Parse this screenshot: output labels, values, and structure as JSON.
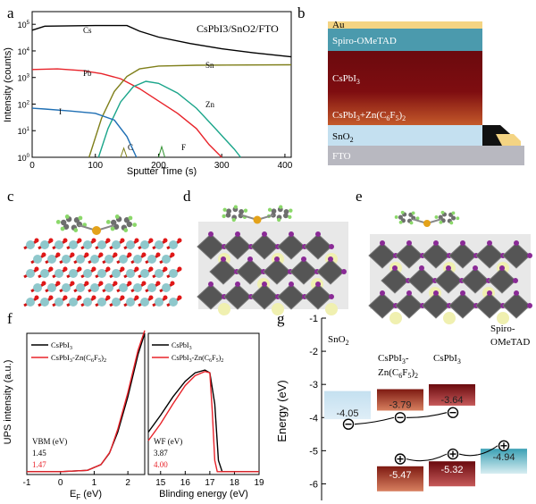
{
  "panels": {
    "a": "a",
    "b": "b",
    "c": "c",
    "d": "d",
    "e": "e",
    "f": "f",
    "g": "g"
  },
  "panel_a": {
    "title": "CsPbI3/SnO2/FTO",
    "xlabel": "Sputter Time (s)",
    "ylabel": "Intensity (counts)",
    "xticks": [
      "0",
      "100",
      "200",
      "300",
      "400"
    ],
    "yticks": [
      "10^0",
      "10^1",
      "10^2",
      "10^3",
      "10^4",
      "10^5"
    ],
    "labels": {
      "cs": "Cs",
      "pb": "Pb",
      "sn": "Sn",
      "zn": "Zn",
      "i": "I",
      "c": "C",
      "f": "F"
    }
  },
  "panel_b": {
    "layers": [
      "Au",
      "Spiro-OMeTAD",
      "CsPbI3",
      "CsPbI3+Zn(C6F5)2",
      "SnO2",
      "FTO"
    ]
  },
  "panel_f": {
    "ylabel": "UPS intensity (a.u.)",
    "left": {
      "xlabel": "EF (eV)",
      "xticks": [
        "-1",
        "0",
        "1",
        "2"
      ],
      "legend": [
        "CsPbI3",
        "CsPbI3-Zn(C6F5)2"
      ],
      "note_title": "VBM (eV)",
      "values": [
        "1.45",
        "1.47"
      ]
    },
    "right": {
      "xlabel": "Blinding energy (eV)",
      "xticks": [
        "15",
        "16",
        "17",
        "18",
        "19"
      ],
      "legend": [
        "CsPbI3",
        "CsPbI3-Zn(C6F5)2"
      ],
      "note_title": "WF (eV)",
      "values": [
        "3.87",
        "4.00"
      ]
    }
  },
  "panel_g": {
    "ylabel": "Energy (eV)",
    "yticks": [
      "-1",
      "-2",
      "-3",
      "-4",
      "-5",
      "-6"
    ],
    "columns": [
      "SnO2",
      "CsPbI3-Zn(C6F5)2",
      "CsPbI3",
      "Spiro-OMeTAD"
    ],
    "cb_values": [
      "-4.05",
      "-3.79",
      "-3.64"
    ],
    "vb_values": [
      "-5.47",
      "-5.32",
      "-4.94"
    ]
  },
  "colors": {
    "black": "#000000",
    "red": "#e8232a",
    "olive": "#7f7f1a",
    "teal": "#1aa58a",
    "blue": "#1f6fb4",
    "au": "#f4d483",
    "spiro": "#4b9aad",
    "perov": "#7e0d10",
    "sno2": "#c4e0f0",
    "fto": "#b8b8c0"
  },
  "chart_data": [
    {
      "type": "line",
      "xlim": [
        0,
        410
      ],
      "ylim": [
        1,
        300000
      ],
      "yscale": "log",
      "series": [
        {
          "name": "Cs",
          "points": [
            [
              0,
              60000
            ],
            [
              20,
              85000
            ],
            [
              100,
              90000
            ],
            [
              150,
              90000
            ],
            [
              170,
              55000
            ],
            [
              200,
              33000
            ],
            [
              250,
              19000
            ],
            [
              300,
              12000
            ],
            [
              350,
              8500
            ],
            [
              410,
              6000
            ]
          ]
        },
        {
          "name": "Pb",
          "points": [
            [
              0,
              2000
            ],
            [
              40,
              2100
            ],
            [
              80,
              1800
            ],
            [
              110,
              1400
            ],
            [
              140,
              900
            ],
            [
              170,
              380
            ],
            [
              200,
              130
            ],
            [
              230,
              45
            ],
            [
              260,
              12
            ],
            [
              280,
              3
            ],
            [
              300,
              1
            ]
          ]
        },
        {
          "name": "Sn",
          "points": [
            [
              90,
              1
            ],
            [
              110,
              30
            ],
            [
              130,
              300
            ],
            [
              150,
              1100
            ],
            [
              170,
              2100
            ],
            [
              200,
              2700
            ],
            [
              260,
              2900
            ],
            [
              410,
              3000
            ]
          ]
        },
        {
          "name": "Zn",
          "points": [
            [
              105,
              1
            ],
            [
              120,
              12
            ],
            [
              140,
              120
            ],
            [
              160,
              450
            ],
            [
              180,
              720
            ],
            [
              200,
              600
            ],
            [
              230,
              260
            ],
            [
              260,
              70
            ],
            [
              290,
              12
            ],
            [
              320,
              2
            ],
            [
              330,
              1
            ]
          ]
        },
        {
          "name": "I",
          "points": [
            [
              0,
              70
            ],
            [
              20,
              65
            ],
            [
              60,
              55
            ],
            [
              100,
              45
            ],
            [
              130,
              25
            ],
            [
              150,
              6
            ],
            [
              165,
              1
            ]
          ]
        }
      ]
    },
    {
      "type": "line",
      "xlim": [
        -1,
        2.5
      ],
      "ylim": [
        0,
        1
      ],
      "series": [
        {
          "name": "CsPbI3",
          "points": [
            [
              -1,
              0.02
            ],
            [
              0,
              0.02
            ],
            [
              0.8,
              0.03
            ],
            [
              1.2,
              0.07
            ],
            [
              1.45,
              0.15
            ],
            [
              1.7,
              0.3
            ],
            [
              2,
              0.55
            ],
            [
              2.3,
              0.85
            ],
            [
              2.5,
              1
            ]
          ]
        },
        {
          "name": "CsPbI3-Zn(C6F5)2",
          "points": [
            [
              -1,
              0.02
            ],
            [
              0,
              0.02
            ],
            [
              0.8,
              0.03
            ],
            [
              1.2,
              0.07
            ],
            [
              1.47,
              0.16
            ],
            [
              1.7,
              0.32
            ],
            [
              2,
              0.58
            ],
            [
              2.3,
              0.88
            ],
            [
              2.5,
              1.02
            ]
          ]
        }
      ]
    },
    {
      "type": "line",
      "xlim": [
        14.5,
        19
      ],
      "ylim": [
        0,
        1
      ],
      "series": [
        {
          "name": "CsPbI3",
          "points": [
            [
              14.5,
              0.3
            ],
            [
              15,
              0.42
            ],
            [
              15.5,
              0.55
            ],
            [
              16,
              0.66
            ],
            [
              16.4,
              0.72
            ],
            [
              16.8,
              0.74
            ],
            [
              17,
              0.72
            ],
            [
              17.2,
              0.5
            ],
            [
              17.35,
              0.1
            ],
            [
              17.5,
              0.02
            ],
            [
              19,
              0.02
            ]
          ]
        },
        {
          "name": "CsPbI3-Zn(C6F5)2",
          "points": [
            [
              14.5,
              0.24
            ],
            [
              15,
              0.36
            ],
            [
              15.5,
              0.5
            ],
            [
              16,
              0.63
            ],
            [
              16.4,
              0.7
            ],
            [
              16.8,
              0.73
            ],
            [
              17,
              0.72
            ],
            [
              17.1,
              0.45
            ],
            [
              17.2,
              0.1
            ],
            [
              17.3,
              0.02
            ],
            [
              19,
              0.02
            ]
          ]
        }
      ]
    },
    {
      "type": "bar",
      "categories": [
        "SnO2",
        "CsPbI3-Zn(C6F5)2",
        "CsPbI3",
        "Spiro-OMeTAD"
      ],
      "conduction_band": [
        -4.05,
        -3.79,
        -3.64,
        null
      ],
      "valence_band": [
        null,
        -5.47,
        -5.32,
        -4.94
      ],
      "ylim": [
        -6.5,
        -1
      ]
    }
  ]
}
